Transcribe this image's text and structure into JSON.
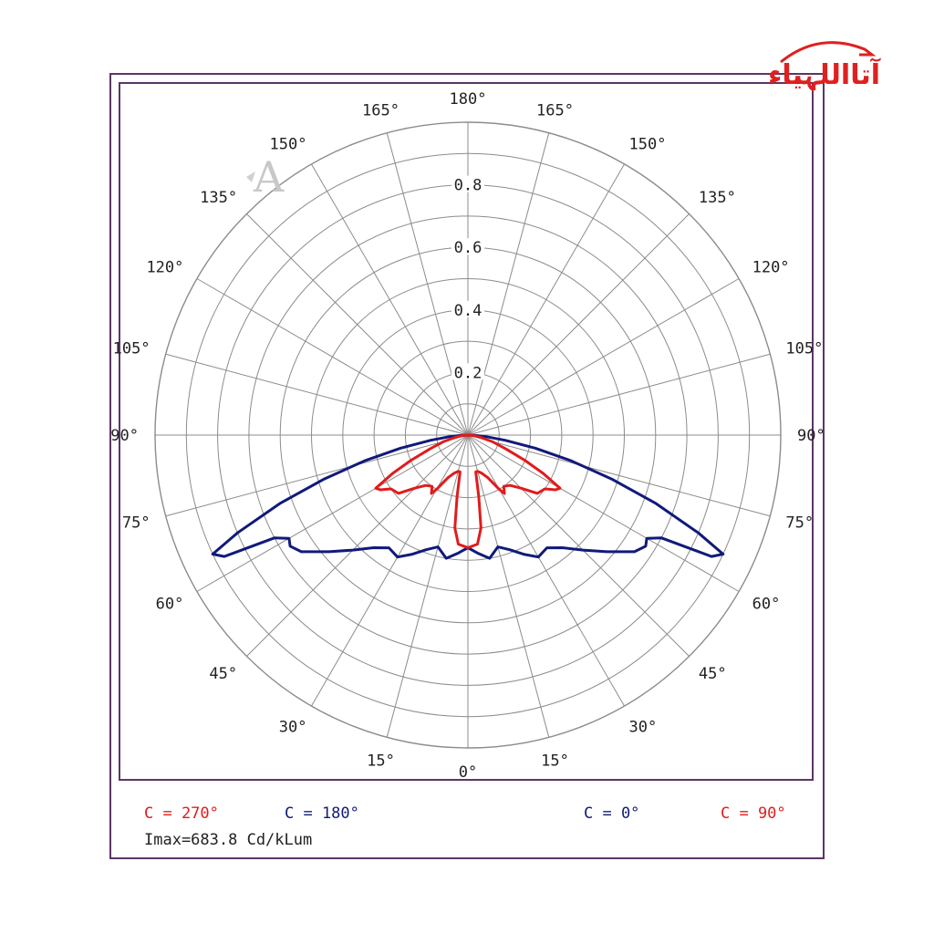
{
  "logo": {
    "text": "آتااللہیاء",
    "color": "#e02020"
  },
  "watermark": {
    "text": "A"
  },
  "legend": {
    "c270": "C = 270°",
    "c180": "C = 180°",
    "c0": "C = 0°",
    "c90": "C = 90°",
    "imax": "Imax=683.8 Cd/kLum"
  },
  "colors": {
    "red_series": "#e21b1b",
    "blue_series": "#101a7a",
    "grid": "#8c8c8c",
    "frame": "#5c3566"
  },
  "chart_data": {
    "type": "polar",
    "radial_ticks": [
      "0.2",
      "0.4",
      "0.6",
      "0.8"
    ],
    "rmax": 1.0,
    "grid_step_deg": 15,
    "angle_labels_right": [
      "0°",
      "15°",
      "30°",
      "45°",
      "60°",
      "75°",
      "90°",
      "105°",
      "120°",
      "135°",
      "150°",
      "165°",
      "180°"
    ],
    "angle_labels_left": [
      "15°",
      "30°",
      "45°",
      "60°",
      "75°",
      "90°",
      "105°",
      "120°",
      "135°",
      "150°",
      "165°"
    ],
    "series": [
      {
        "name": "C = 0° / C = 180°",
        "color": "#101a7a",
        "symmetric": true,
        "angles": [
          0,
          5,
          10,
          15,
          20,
          25,
          30,
          35,
          40,
          45,
          50,
          55,
          58,
          60,
          62,
          63.5,
          65,
          67,
          70,
          73,
          76,
          79,
          82,
          85,
          88,
          90
        ],
        "values": [
          0.36,
          0.38,
          0.4,
          0.37,
          0.39,
          0.42,
          0.45,
          0.44,
          0.47,
          0.52,
          0.58,
          0.65,
          0.67,
          0.66,
          0.7,
          0.87,
          0.9,
          0.8,
          0.64,
          0.48,
          0.34,
          0.22,
          0.12,
          0.06,
          0.02,
          0.0
        ]
      },
      {
        "name": "C = 90° / C = 270°",
        "color": "#e21b1b",
        "symmetric": true,
        "angles": [
          0,
          5,
          8,
          10,
          12,
          15,
          20,
          25,
          30,
          32,
          35,
          40,
          45,
          50,
          55,
          58,
          60,
          63,
          66,
          70,
          75,
          80,
          85,
          90
        ],
        "values": [
          0.36,
          0.35,
          0.3,
          0.2,
          0.12,
          0.12,
          0.13,
          0.15,
          0.2,
          0.22,
          0.2,
          0.21,
          0.24,
          0.29,
          0.3,
          0.33,
          0.34,
          0.27,
          0.2,
          0.13,
          0.08,
          0.04,
          0.02,
          0.0
        ]
      }
    ]
  }
}
